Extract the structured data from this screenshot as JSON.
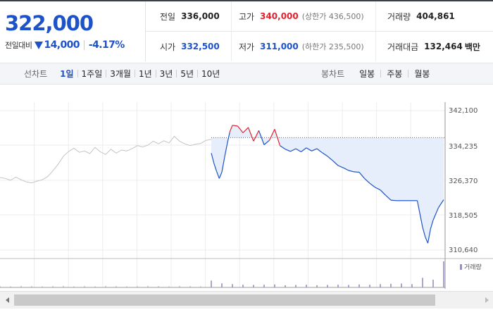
{
  "quote": {
    "price": "322,000",
    "change_label": "전일대비",
    "change_abs": "14,000",
    "change_pct": "-4.17%",
    "direction": "down"
  },
  "stats": {
    "prev_close": {
      "label": "전일",
      "value": "336,000"
    },
    "high": {
      "label": "고가",
      "value": "340,000",
      "sub": "(상한가 436,500)"
    },
    "volume": {
      "label": "거래량",
      "value": "404,861"
    },
    "open": {
      "label": "시가",
      "value": "332,500"
    },
    "low": {
      "label": "저가",
      "value": "311,000",
      "sub": "(하한가 235,500)"
    },
    "trade_value": {
      "label": "거래대금",
      "value": "132,464",
      "unit": "백만"
    }
  },
  "toolbar": {
    "line_chart_label": "선차트",
    "periods": [
      "1일",
      "1주일",
      "3개월",
      "1년",
      "3년",
      "5년",
      "10년"
    ],
    "active_period": "1일",
    "candle_label": "봉차트",
    "candles": [
      "일봉",
      "주봉",
      "월봉"
    ]
  },
  "colors": {
    "up": "#e0222d",
    "down": "#1d52c8",
    "prev_day_line": "#c4c4c4",
    "area_fill": "#e6eefb",
    "volume_bar": "#9a8cc4"
  },
  "chart_data": {
    "type": "line",
    "y_ticks": [
      "342,100",
      "334,235",
      "326,370",
      "318,505",
      "310,640"
    ],
    "ylim": [
      310640,
      342100
    ],
    "reference_value": 336000,
    "grid": true,
    "legend": {
      "volume_label": "거래량",
      "placement": "top-right"
    },
    "series": [
      {
        "t": [
          0,
          0.5,
          1,
          1.5,
          2,
          2.5,
          3,
          3.5,
          4,
          4.5,
          5,
          5.5,
          6,
          6.5,
          7,
          7.5,
          8,
          8.5,
          9,
          9.5,
          10,
          10.5,
          11,
          11.5,
          12,
          12.5,
          13,
          13.5,
          14,
          14.5,
          15,
          15.5,
          16,
          16.5,
          17,
          17.5,
          18,
          18.5,
          19,
          19.5,
          20
        ],
        "values": [
          327000,
          326800,
          326400,
          327100,
          326500,
          326000,
          325800,
          326200,
          326500,
          327200,
          328500,
          330000,
          331800,
          332900,
          333600,
          332700,
          333000,
          332400,
          333800,
          332800,
          332200,
          333400,
          332500,
          333200,
          333000,
          333500,
          334200,
          333900,
          334300,
          335200,
          334600,
          335300,
          334800,
          336300,
          335200,
          334600,
          334200,
          334500,
          334700,
          335400,
          335600
        ]
      },
      {
        "t": [
          20,
          20.25,
          20.5,
          20.75,
          21,
          21.25,
          21.5,
          21.75,
          22,
          22.5,
          23,
          23.5,
          24,
          24.5,
          25,
          25.5,
          26,
          26.5,
          27,
          27.5,
          28,
          28.5,
          29,
          29.5,
          30,
          30.5,
          31,
          31.5,
          32,
          32.5,
          33,
          33.5,
          34,
          34.5,
          35,
          35.5,
          36,
          36.5,
          37,
          37.5,
          38,
          38.5,
          39,
          39.5,
          40,
          40.25,
          40.5,
          40.75,
          41,
          41.5,
          42
        ],
        "values": [
          332500,
          330200,
          328400,
          326800,
          328200,
          331500,
          334500,
          337300,
          338800,
          338600,
          337100,
          338300,
          335200,
          337600,
          334400,
          335400,
          337900,
          334200,
          333400,
          332900,
          333500,
          332800,
          333700,
          333000,
          333500,
          332600,
          331800,
          330800,
          329700,
          329200,
          328600,
          328300,
          328200,
          326800,
          325700,
          324800,
          324200,
          323000,
          321900,
          321800,
          321800,
          321800,
          321800,
          321800,
          315800,
          313600,
          312200,
          315400,
          317400,
          320200,
          322000
        ]
      }
    ],
    "volume": {
      "t": [
        0,
        1,
        2,
        3,
        4,
        5,
        6,
        7,
        8,
        9,
        10,
        11,
        12,
        13,
        14,
        15,
        16,
        17,
        18,
        19,
        20,
        21,
        22,
        23,
        24,
        25,
        26,
        27,
        28,
        29,
        30,
        31,
        32,
        33,
        34,
        35,
        36,
        37,
        38,
        39,
        40,
        41,
        42
      ],
      "values": [
        0.5,
        0.4,
        0.6,
        0.5,
        0.4,
        0.5,
        0.6,
        0.4,
        0.5,
        0.4,
        0.6,
        0.5,
        0.4,
        0.5,
        0.6,
        0.5,
        0.4,
        0.6,
        0.5,
        0.4,
        2.5,
        1.5,
        1.2,
        1.0,
        0.9,
        1.0,
        1.1,
        0.8,
        0.9,
        1.0,
        0.8,
        0.9,
        1.0,
        0.9,
        1.1,
        1.0,
        1.2,
        1.3,
        1.4,
        1.2,
        3.5,
        2.8,
        9.5
      ]
    }
  }
}
